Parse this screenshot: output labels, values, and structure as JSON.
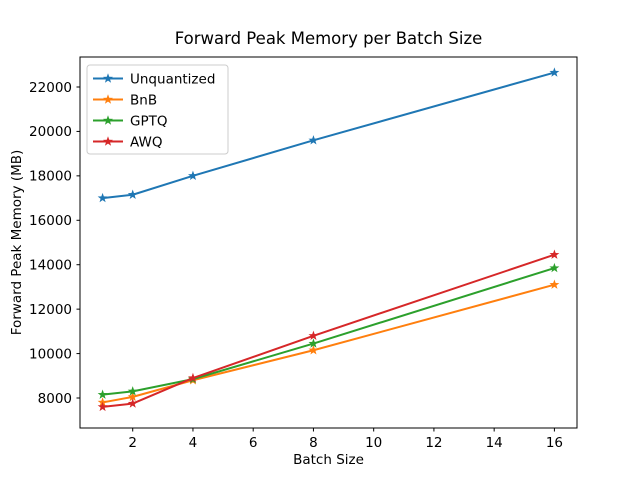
{
  "chart_data": {
    "type": "line",
    "title": "Forward Peak Memory per Batch Size",
    "xlabel": "Batch Size",
    "ylabel": "Forward Peak Memory (MB)",
    "x": [
      1,
      2,
      4,
      8,
      16
    ],
    "series": [
      {
        "name": "Unquantized",
        "color": "#1f77b4",
        "values": [
          17000,
          17150,
          18000,
          19600,
          22650
        ]
      },
      {
        "name": "BnB",
        "color": "#ff7f0e",
        "values": [
          7800,
          8050,
          8800,
          10150,
          13100
        ]
      },
      {
        "name": "GPTQ",
        "color": "#2ca02c",
        "values": [
          8150,
          8300,
          8850,
          10450,
          13850
        ]
      },
      {
        "name": "AWQ",
        "color": "#d62728",
        "values": [
          7600,
          7750,
          8900,
          10800,
          14450
        ]
      }
    ],
    "xticks": [
      2,
      4,
      6,
      8,
      10,
      12,
      14,
      16
    ],
    "yticks": [
      8000,
      10000,
      12000,
      14000,
      16000,
      18000,
      20000,
      22000
    ],
    "xlim": [
      0.25,
      16.75
    ],
    "ylim": [
      6650,
      23350
    ],
    "grid": false,
    "marker": "star",
    "legend_position": "upper left",
    "background": "#ffffff",
    "spine_color": "#000000",
    "legend_border_color": "#cccccc"
  }
}
